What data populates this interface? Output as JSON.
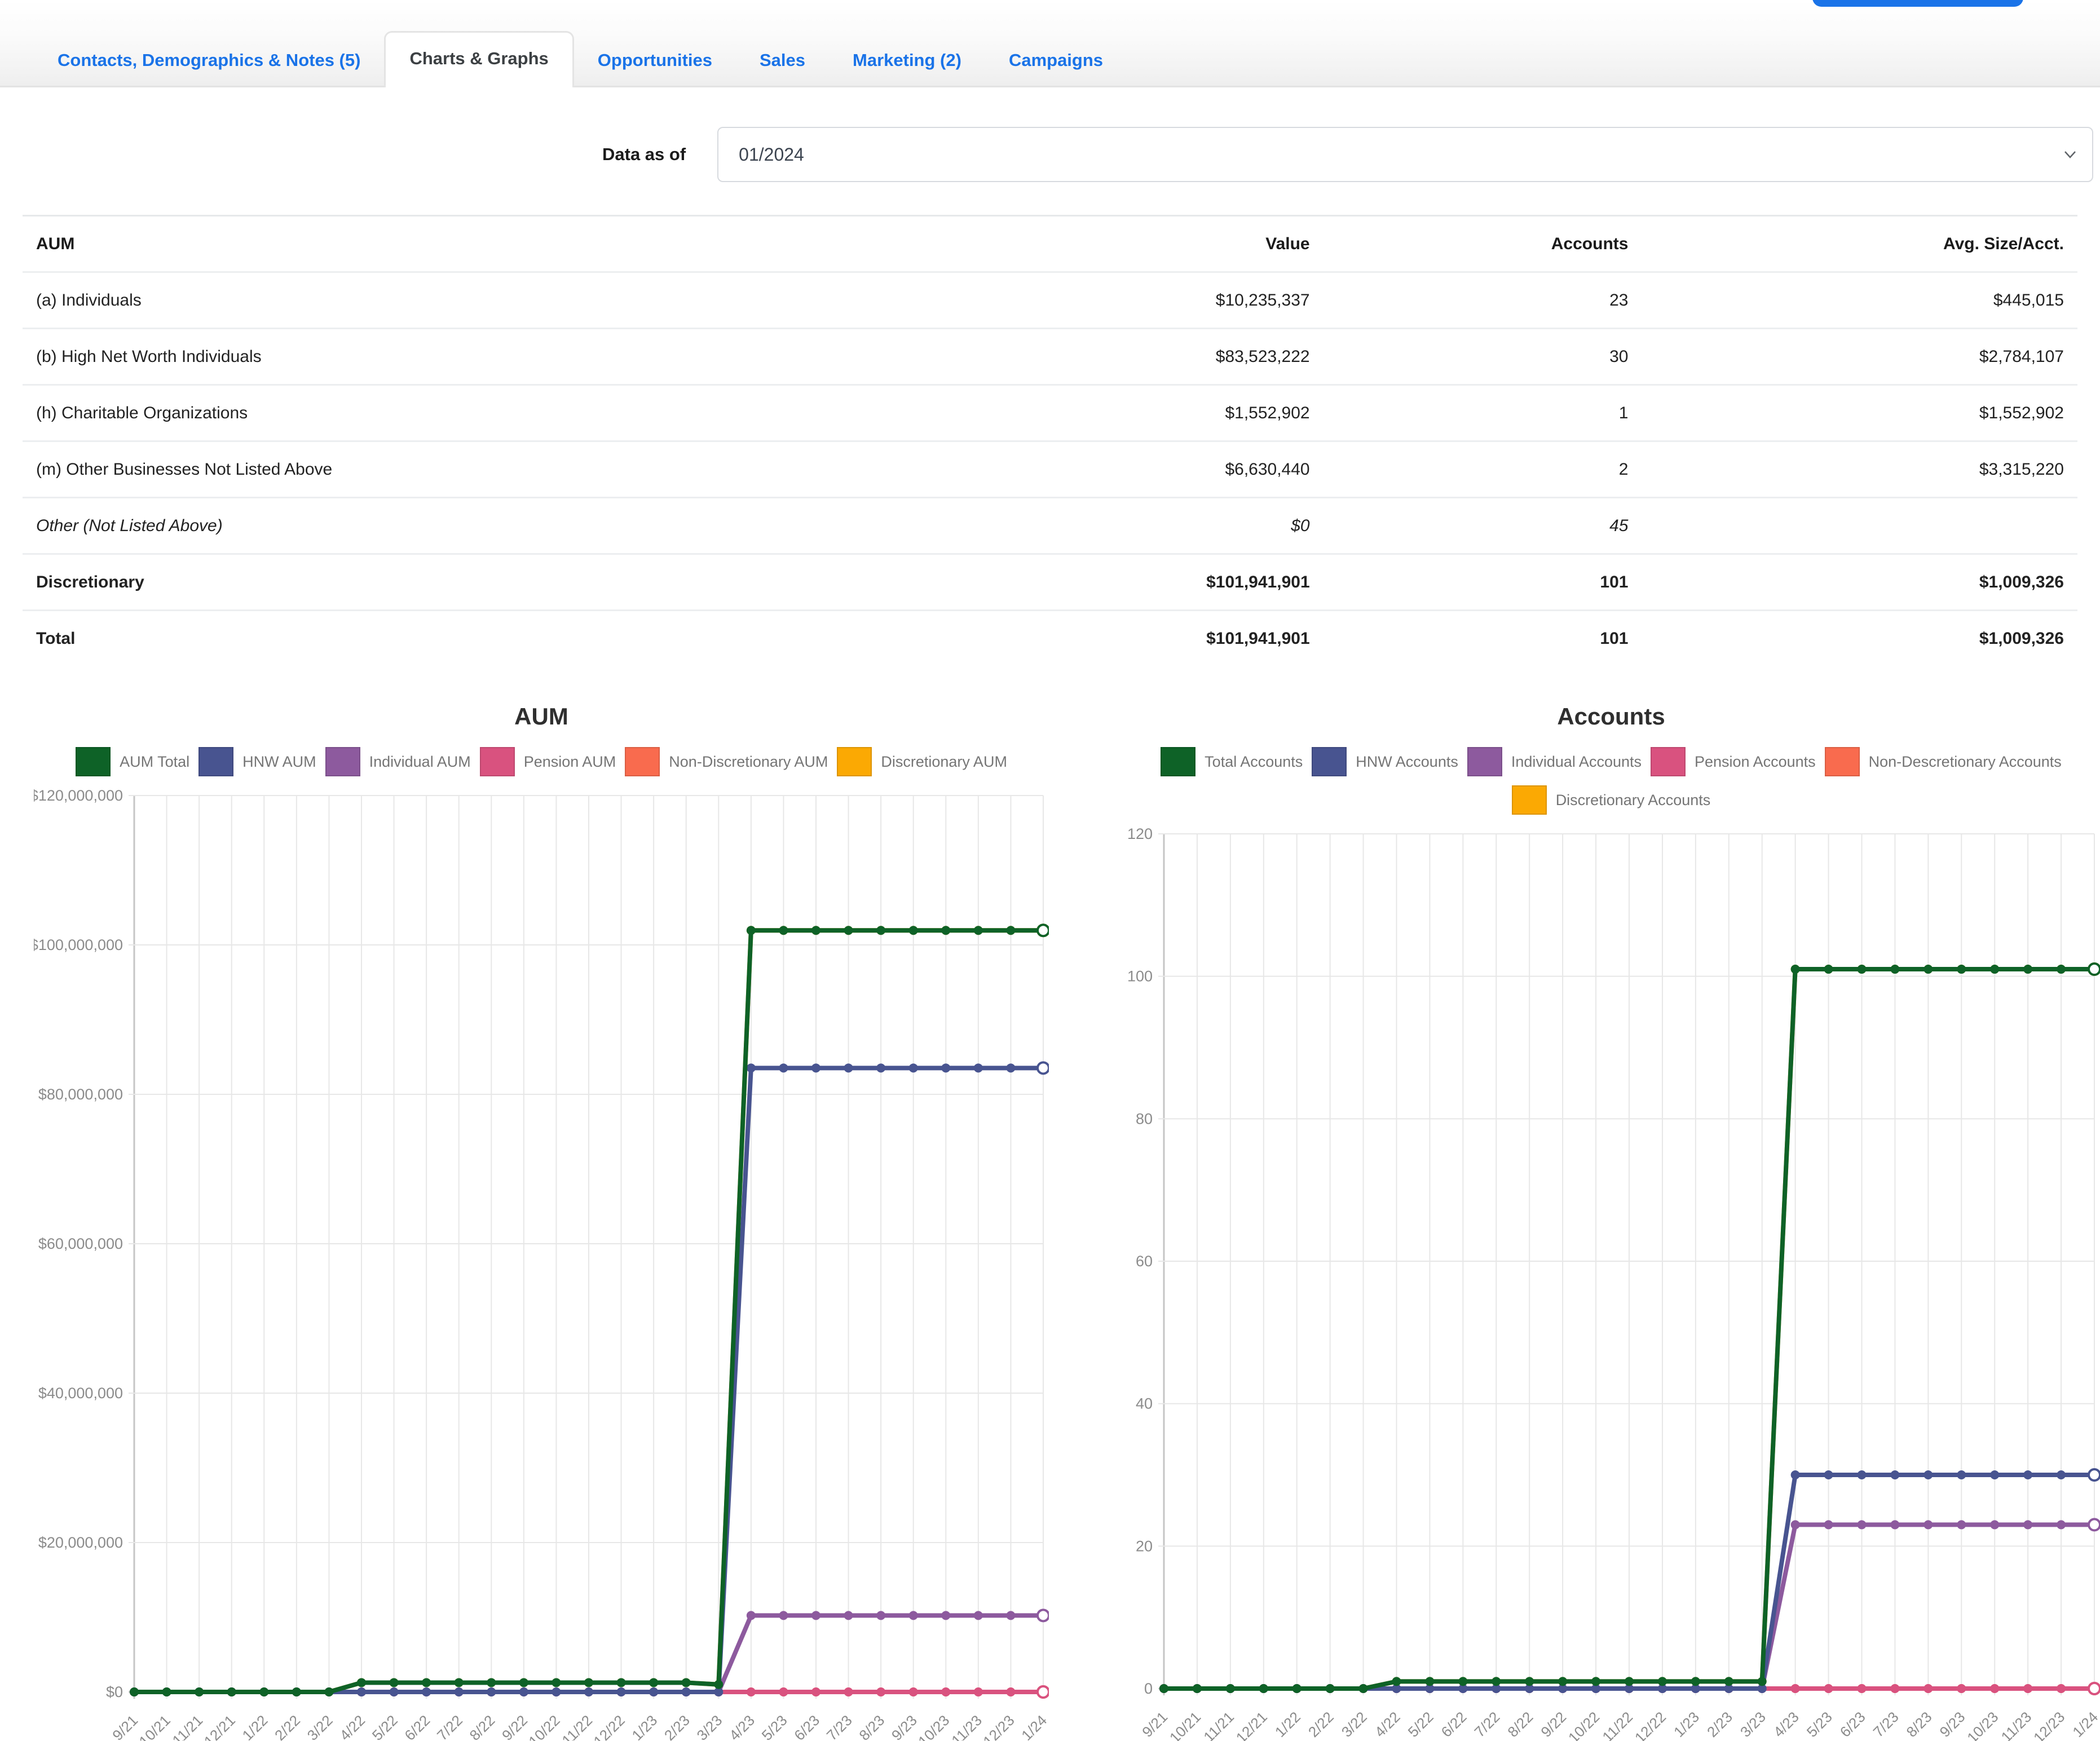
{
  "tabs": [
    {
      "label": "Contacts, Demographics & Notes (5)",
      "active": false
    },
    {
      "label": "Charts & Graphs",
      "active": true
    },
    {
      "label": "Opportunities",
      "active": false
    },
    {
      "label": "Sales",
      "active": false
    },
    {
      "label": "Marketing (2)",
      "active": false
    },
    {
      "label": "Campaigns",
      "active": false
    }
  ],
  "filters": {
    "data_as_of_label": "Data as of",
    "selected_period": "01/2024"
  },
  "table": {
    "columns": [
      "AUM",
      "Value",
      "Accounts",
      "Avg. Size/Acct."
    ],
    "rows": [
      {
        "label": "(a) Individuals",
        "value": "$10,235,337",
        "accounts": "23",
        "avg": "$445,015",
        "style": "normal"
      },
      {
        "label": "(b) High Net Worth Individuals",
        "value": "$83,523,222",
        "accounts": "30",
        "avg": "$2,784,107",
        "style": "normal"
      },
      {
        "label": "(h) Charitable Organizations",
        "value": "$1,552,902",
        "accounts": "1",
        "avg": "$1,552,902",
        "style": "normal"
      },
      {
        "label": "(m) Other Businesses Not Listed Above",
        "value": "$6,630,440",
        "accounts": "2",
        "avg": "$3,315,220",
        "style": "normal"
      },
      {
        "label": "Other (Not Listed Above)",
        "value": "$0",
        "accounts": "45",
        "avg": "",
        "style": "italic"
      },
      {
        "label": "Discretionary",
        "value": "$101,941,901",
        "accounts": "101",
        "avg": "$1,009,326",
        "style": "bold"
      },
      {
        "label": "Total",
        "value": "$101,941,901",
        "accounts": "101",
        "avg": "$1,009,326",
        "style": "bold"
      }
    ]
  },
  "chart_data": [
    {
      "type": "line",
      "title": "AUM",
      "legend_position": "top",
      "grid": true,
      "categories": [
        "9/21",
        "10/21",
        "11/21",
        "12/21",
        "1/22",
        "2/22",
        "3/22",
        "4/22",
        "5/22",
        "6/22",
        "7/22",
        "8/22",
        "9/22",
        "10/22",
        "11/22",
        "12/22",
        "1/23",
        "2/23",
        "3/23",
        "4/23",
        "5/23",
        "6/23",
        "7/23",
        "8/23",
        "9/23",
        "10/23",
        "11/23",
        "12/23",
        "1/24"
      ],
      "ylim": [
        0,
        120000000
      ],
      "y_ticks": [
        {
          "value": 0,
          "label": "$0"
        },
        {
          "value": 20000000,
          "label": "$20,000,000"
        },
        {
          "value": 40000000,
          "label": "$40,000,000"
        },
        {
          "value": 60000000,
          "label": "$60,000,000"
        },
        {
          "value": 80000000,
          "label": "$80,000,000"
        },
        {
          "value": 100000000,
          "label": "$100,000,000"
        },
        {
          "value": 120000000,
          "label": "$120,000,000"
        }
      ],
      "series": [
        {
          "name": "AUM Total",
          "color": "#0e6227",
          "values": [
            0,
            0,
            0,
            0,
            0,
            0,
            0,
            1250000,
            1250000,
            1250000,
            1250000,
            1250000,
            1250000,
            1250000,
            1250000,
            1250000,
            1250000,
            1250000,
            1000000,
            101941901,
            101941901,
            101941901,
            101941901,
            101941901,
            101941901,
            101941901,
            101941901,
            101941901,
            101941901
          ]
        },
        {
          "name": "HNW AUM",
          "color": "#485490",
          "values": [
            0,
            0,
            0,
            0,
            0,
            0,
            0,
            0,
            0,
            0,
            0,
            0,
            0,
            0,
            0,
            0,
            0,
            0,
            0,
            83523222,
            83523222,
            83523222,
            83523222,
            83523222,
            83523222,
            83523222,
            83523222,
            83523222,
            83523222
          ]
        },
        {
          "name": "Individual AUM",
          "color": "#8d5a9e",
          "values": [
            0,
            0,
            0,
            0,
            0,
            0,
            0,
            0,
            0,
            0,
            0,
            0,
            0,
            0,
            0,
            0,
            0,
            0,
            0,
            10235337,
            10235337,
            10235337,
            10235337,
            10235337,
            10235337,
            10235337,
            10235337,
            10235337,
            10235337
          ]
        },
        {
          "name": "Pension AUM",
          "color": "#d9527f",
          "values": [
            0,
            0,
            0,
            0,
            0,
            0,
            0,
            0,
            0,
            0,
            0,
            0,
            0,
            0,
            0,
            0,
            0,
            0,
            0,
            0,
            0,
            0,
            0,
            0,
            0,
            0,
            0,
            0,
            0
          ]
        },
        {
          "name": "Non-Discretionary AUM",
          "color": "#f96b4e",
          "values": [
            0,
            0,
            0,
            0,
            0,
            0,
            0,
            0,
            0,
            0,
            0,
            0,
            0,
            0,
            0,
            0,
            0,
            0,
            0,
            0,
            0,
            0,
            0,
            0,
            0,
            0,
            0,
            0,
            0
          ]
        },
        {
          "name": "Discretionary AUM",
          "color": "#fba903",
          "values": [
            0,
            0,
            0,
            0,
            0,
            0,
            0,
            1250000,
            1250000,
            1250000,
            1250000,
            1250000,
            1250000,
            1250000,
            1250000,
            1250000,
            1250000,
            1250000,
            1000000,
            101941901,
            101941901,
            101941901,
            101941901,
            101941901,
            101941901,
            101941901,
            101941901,
            101941901,
            101941901
          ]
        }
      ]
    },
    {
      "type": "line",
      "title": "Accounts",
      "legend_position": "top",
      "grid": true,
      "categories": [
        "9/21",
        "10/21",
        "11/21",
        "12/21",
        "1/22",
        "2/22",
        "3/22",
        "4/22",
        "5/22",
        "6/22",
        "7/22",
        "8/22",
        "9/22",
        "10/22",
        "11/22",
        "12/22",
        "1/23",
        "2/23",
        "3/23",
        "4/23",
        "5/23",
        "6/23",
        "7/23",
        "8/23",
        "9/23",
        "10/23",
        "11/23",
        "12/23",
        "1/24"
      ],
      "ylim": [
        0,
        120
      ],
      "y_ticks": [
        {
          "value": 0,
          "label": "0"
        },
        {
          "value": 20,
          "label": "20"
        },
        {
          "value": 40,
          "label": "40"
        },
        {
          "value": 60,
          "label": "60"
        },
        {
          "value": 80,
          "label": "80"
        },
        {
          "value": 100,
          "label": "100"
        },
        {
          "value": 120,
          "label": "120"
        }
      ],
      "series": [
        {
          "name": "Total Accounts",
          "color": "#0e6227",
          "values": [
            0,
            0,
            0,
            0,
            0,
            0,
            0,
            1,
            1,
            1,
            1,
            1,
            1,
            1,
            1,
            1,
            1,
            1,
            1,
            101,
            101,
            101,
            101,
            101,
            101,
            101,
            101,
            101,
            101
          ]
        },
        {
          "name": "HNW Accounts",
          "color": "#485490",
          "values": [
            0,
            0,
            0,
            0,
            0,
            0,
            0,
            0,
            0,
            0,
            0,
            0,
            0,
            0,
            0,
            0,
            0,
            0,
            0,
            30,
            30,
            30,
            30,
            30,
            30,
            30,
            30,
            30,
            30
          ]
        },
        {
          "name": "Individual Accounts",
          "color": "#8d5a9e",
          "values": [
            0,
            0,
            0,
            0,
            0,
            0,
            0,
            0,
            0,
            0,
            0,
            0,
            0,
            0,
            0,
            0,
            0,
            0,
            0,
            23,
            23,
            23,
            23,
            23,
            23,
            23,
            23,
            23,
            23
          ]
        },
        {
          "name": "Pension Accounts",
          "color": "#d9527f",
          "values": [
            0,
            0,
            0,
            0,
            0,
            0,
            0,
            0,
            0,
            0,
            0,
            0,
            0,
            0,
            0,
            0,
            0,
            0,
            0,
            0,
            0,
            0,
            0,
            0,
            0,
            0,
            0,
            0,
            0
          ]
        },
        {
          "name": "Non-Descretionary Accounts",
          "color": "#f96b4e",
          "values": [
            0,
            0,
            0,
            0,
            0,
            0,
            0,
            0,
            0,
            0,
            0,
            0,
            0,
            0,
            0,
            0,
            0,
            0,
            0,
            0,
            0,
            0,
            0,
            0,
            0,
            0,
            0,
            0,
            0
          ]
        },
        {
          "name": "Discretionary Accounts",
          "color": "#fba903",
          "values": [
            0,
            0,
            0,
            0,
            0,
            0,
            0,
            1,
            1,
            1,
            1,
            1,
            1,
            1,
            1,
            1,
            1,
            1,
            1,
            101,
            101,
            101,
            101,
            101,
            101,
            101,
            101,
            101,
            101
          ]
        }
      ]
    }
  ]
}
